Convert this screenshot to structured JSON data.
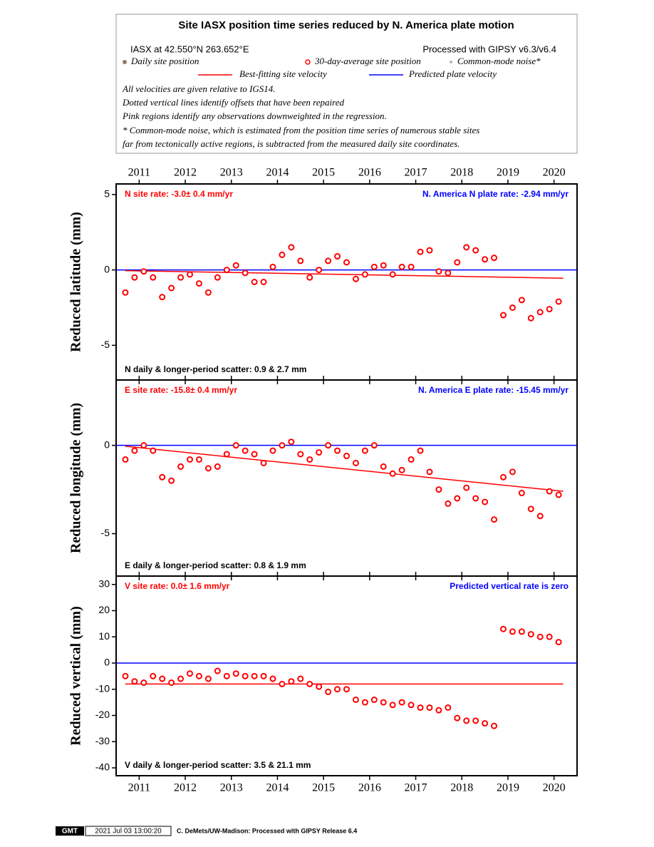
{
  "header": {
    "title": "Site IASX position time series reduced by N. America plate motion",
    "site": "IASX at 42.550°N 263.652°E",
    "processing": "Processed with GIPSY v6.3/v6.4",
    "legend": [
      {
        "label": "Daily site position",
        "color": "#8c7b68"
      },
      {
        "label": "30-day-average site position",
        "color": "#ff0000"
      },
      {
        "label": "Common-mode noise*",
        "color": "#b8b8b8"
      },
      {
        "label": "Best-fitting site velocity",
        "color": "#ff0000"
      },
      {
        "label": "Predicted plate velocity",
        "color": "#0000ff"
      }
    ],
    "notes": [
      "All velocities are given relative to IGS14.",
      "Dotted vertical lines identify offsets that have been repaired",
      "Pink regions identify any observations downweighted in the regression.",
      "* Common-mode noise, which is estimated from the position time series of numerous stable sites",
      "far from tectonically active regions, is subtracted from the measured daily site coordinates."
    ]
  },
  "chart_data": [
    {
      "type": "scatter",
      "ylabel": "Reduced latitude (mm)",
      "rate_label": "N site rate:  -3.0± 0.4 mm/yr",
      "plate_label": "N. America N plate rate: -2.94 mm/yr",
      "scatter_label": "N daily & longer-period scatter:   0.9 &   2.7 mm",
      "xlim": [
        2010.5,
        2020.5
      ],
      "xticks": [
        2011,
        2012,
        2013,
        2014,
        2015,
        2016,
        2017,
        2018,
        2019,
        2020
      ],
      "ylim": [
        -7.3,
        5.7
      ],
      "yticks": [
        5,
        0,
        -5
      ],
      "series": [
        {
          "color": "#ff0000",
          "x": [
            2010.7,
            2010.9,
            2011.1,
            2011.3,
            2011.5,
            2011.7,
            2011.9,
            2012.1,
            2012.3,
            2012.5,
            2012.7,
            2012.9,
            2013.1,
            2013.3,
            2013.5,
            2013.7,
            2013.9,
            2014.1,
            2014.3,
            2014.5,
            2014.7,
            2014.9,
            2015.1,
            2015.3,
            2015.5,
            2015.7,
            2015.9,
            2016.1,
            2016.3,
            2016.5,
            2016.7,
            2016.9,
            2017.1,
            2017.3,
            2017.5,
            2017.7,
            2017.9,
            2018.1,
            2018.3,
            2018.5,
            2018.7,
            2018.9,
            2019.1,
            2019.3,
            2019.5,
            2019.7,
            2019.9,
            2020.1
          ],
          "values": [
            -1.5,
            -0.5,
            -0.1,
            -0.5,
            -1.8,
            -1.2,
            -0.5,
            -0.3,
            -0.9,
            -1.5,
            -0.5,
            0.0,
            0.3,
            -0.2,
            -0.8,
            -0.8,
            0.2,
            1.0,
            1.5,
            0.6,
            -0.5,
            0.0,
            0.6,
            0.9,
            0.5,
            -0.6,
            -0.3,
            0.2,
            0.3,
            -0.3,
            0.2,
            0.2,
            1.2,
            1.3,
            -0.1,
            -0.2,
            0.5,
            1.5,
            1.3,
            0.7,
            0.8,
            -3.0,
            -2.5,
            -2.0,
            -3.2,
            -2.8,
            -2.6,
            -2.1
          ]
        },
        {
          "color": "#ff0000",
          "x": [
            2010.7,
            2020.2
          ],
          "values": [
            -0.05,
            -0.55
          ]
        },
        {
          "color": "#0000ff",
          "x": [
            2010.5,
            2020.5
          ],
          "values": [
            0,
            0
          ]
        }
      ]
    },
    {
      "type": "scatter",
      "ylabel": "Reduced longitude (mm)",
      "rate_label": "E site rate: -15.8± 0.4 mm/yr",
      "plate_label": "N. America E plate rate: -15.45 mm/yr",
      "scatter_label": "E daily & longer-period scatter:   0.8 &   1.9 mm",
      "xlim": [
        2010.5,
        2020.5
      ],
      "xticks": [
        2011,
        2012,
        2013,
        2014,
        2015,
        2016,
        2017,
        2018,
        2019,
        2020
      ],
      "ylim": [
        -7.4,
        3.7
      ],
      "yticks": [
        0,
        -5
      ],
      "series": [
        {
          "color": "#ff0000",
          "x": [
            2010.7,
            2010.9,
            2011.1,
            2011.3,
            2011.5,
            2011.7,
            2011.9,
            2012.1,
            2012.3,
            2012.5,
            2012.7,
            2012.9,
            2013.1,
            2013.3,
            2013.5,
            2013.7,
            2013.9,
            2014.1,
            2014.3,
            2014.5,
            2014.7,
            2014.9,
            2015.1,
            2015.3,
            2015.5,
            2015.7,
            2015.9,
            2016.1,
            2016.3,
            2016.5,
            2016.7,
            2016.9,
            2017.1,
            2017.3,
            2017.5,
            2017.7,
            2017.9,
            2018.1,
            2018.3,
            2018.5,
            2018.7,
            2018.9,
            2019.1,
            2019.3,
            2019.5,
            2019.7,
            2019.9,
            2020.1
          ],
          "values": [
            -0.8,
            -0.3,
            0.0,
            -0.3,
            -1.8,
            -2.0,
            -1.2,
            -0.8,
            -0.8,
            -1.3,
            -1.2,
            -0.5,
            0.0,
            -0.3,
            -0.5,
            -1.0,
            -0.3,
            0.0,
            0.2,
            -0.5,
            -0.8,
            -0.4,
            0.0,
            -0.3,
            -0.6,
            -1.0,
            -0.3,
            0.0,
            -1.2,
            -1.6,
            -1.4,
            -0.8,
            -0.3,
            -1.5,
            -2.5,
            -3.3,
            -3.0,
            -2.4,
            -3.0,
            -3.2,
            -4.2,
            -1.8,
            -1.5,
            -2.7,
            -3.6,
            -4.0,
            -2.6,
            -2.8
          ]
        },
        {
          "color": "#ff0000",
          "x": [
            2010.7,
            2020.2
          ],
          "values": [
            -0.05,
            -2.6
          ]
        },
        {
          "color": "#0000ff",
          "x": [
            2010.5,
            2020.5
          ],
          "values": [
            0,
            0
          ]
        }
      ]
    },
    {
      "type": "scatter",
      "ylabel": "Reduced vertical (mm)",
      "rate_label": "V site rate:   0.0± 1.6 mm/yr",
      "plate_label": "Predicted vertical rate is zero",
      "scatter_label": "V daily & longer-period scatter:   3.5 &  21.1 mm",
      "xlim": [
        2010.5,
        2020.5
      ],
      "xticks": [
        2011,
        2012,
        2013,
        2014,
        2015,
        2016,
        2017,
        2018,
        2019,
        2020
      ],
      "ylim": [
        -43,
        33.2
      ],
      "yticks": [
        30,
        20,
        10,
        0,
        -10,
        -20,
        -30,
        -40
      ],
      "series": [
        {
          "color": "#ff0000",
          "x": [
            2010.7,
            2010.9,
            2011.1,
            2011.3,
            2011.5,
            2011.7,
            2011.9,
            2012.1,
            2012.3,
            2012.5,
            2012.7,
            2012.9,
            2013.1,
            2013.3,
            2013.5,
            2013.7,
            2013.9,
            2014.1,
            2014.3,
            2014.5,
            2014.7,
            2014.9,
            2015.1,
            2015.3,
            2015.5,
            2015.7,
            2015.9,
            2016.1,
            2016.3,
            2016.5,
            2016.7,
            2016.9,
            2017.1,
            2017.3,
            2017.5,
            2017.7,
            2017.9,
            2018.1,
            2018.3,
            2018.5,
            2018.7,
            2018.9,
            2019.1,
            2019.3,
            2019.5,
            2019.7,
            2019.9,
            2020.1
          ],
          "values": [
            -5,
            -7,
            -7.5,
            -5,
            -6,
            -7.5,
            -6,
            -4,
            -5,
            -6,
            -3,
            -5,
            -4,
            -5,
            -5,
            -5,
            -6,
            -8,
            -7,
            -6,
            -8,
            -9,
            -11,
            -10,
            -10,
            -14,
            -15,
            -14,
            -15,
            -16,
            -15,
            -16,
            -17,
            -17,
            -18,
            -17,
            -21,
            -22,
            -22,
            -23,
            -24,
            13,
            12,
            12,
            11,
            10,
            10,
            8
          ]
        },
        {
          "color": "#ff0000",
          "x": [
            2010.7,
            2020.2
          ],
          "values": [
            -8,
            -8
          ]
        },
        {
          "color": "#0000ff",
          "x": [
            2010.5,
            2020.5
          ],
          "values": [
            0,
            0
          ]
        }
      ]
    }
  ],
  "footer": {
    "logo": "GMT",
    "timestamp": "2021 Jul 03 13:00:20",
    "credit": "C. DeMets/UW-Madison: Processed with GIPSY Release 6.4"
  }
}
